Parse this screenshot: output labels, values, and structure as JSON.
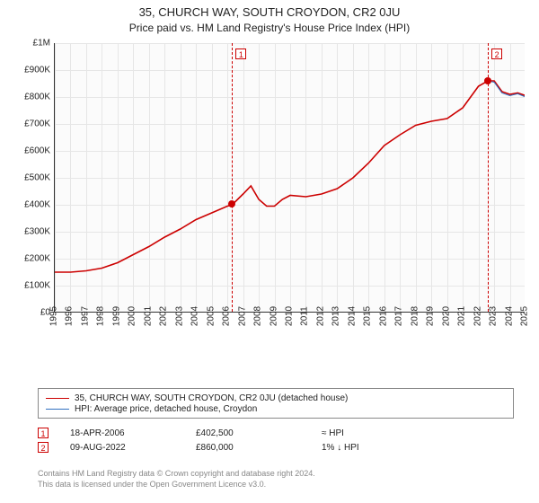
{
  "title": {
    "main": "35, CHURCH WAY, SOUTH CROYDON, CR2 0JU",
    "sub": "Price paid vs. HM Land Registry's House Price Index (HPI)"
  },
  "chart": {
    "type": "line",
    "background_color": "#fbfbfb",
    "grid_color": "#e6e6e6",
    "axis_color": "#333333",
    "label_fontsize": 10,
    "ylim": [
      0,
      1000000
    ],
    "ytick_step": 100000,
    "yticks_labels": [
      "£0",
      "£100K",
      "£200K",
      "£300K",
      "£400K",
      "£500K",
      "£600K",
      "£700K",
      "£800K",
      "£900K",
      "£1M"
    ],
    "xlim_years": [
      1995,
      2025
    ],
    "xticks_years": [
      1995,
      1996,
      1997,
      1998,
      1999,
      2000,
      2001,
      2002,
      2003,
      2004,
      2005,
      2006,
      2007,
      2008,
      2009,
      2010,
      2011,
      2012,
      2013,
      2014,
      2015,
      2016,
      2017,
      2018,
      2019,
      2020,
      2021,
      2022,
      2023,
      2024,
      2025
    ],
    "series": {
      "address": {
        "label": "35, CHURCH WAY, SOUTH CROYDON, CR2 0JU (detached house)",
        "color": "#cc0000",
        "width": 1.6,
        "years": [
          1995,
          1996,
          1997,
          1998,
          1999,
          2000,
          2001,
          2002,
          2003,
          2004,
          2005,
          2006,
          2006.3,
          2007,
          2007.5,
          2008,
          2008.5,
          2009,
          2009.5,
          2010,
          2011,
          2012,
          2013,
          2014,
          2015,
          2016,
          2017,
          2018,
          2019,
          2020,
          2021,
          2022,
          2022.6,
          2023,
          2023.5,
          2024,
          2024.5,
          2025
        ],
        "values": [
          150000,
          150000,
          155000,
          165000,
          185000,
          215000,
          245000,
          280000,
          310000,
          345000,
          370000,
          395000,
          400000,
          440000,
          470000,
          420000,
          395000,
          395000,
          420000,
          435000,
          430000,
          440000,
          460000,
          500000,
          555000,
          620000,
          660000,
          695000,
          710000,
          720000,
          760000,
          840000,
          860000,
          860000,
          820000,
          810000,
          815000,
          805000
        ]
      },
      "hpi": {
        "label": "HPI: Average price, detached house, Croydon",
        "color": "#3070c0",
        "width": 1.0,
        "years": [
          2022.6,
          2023,
          2023.5,
          2024,
          2024.5,
          2025
        ],
        "values": [
          860000,
          855000,
          815000,
          805000,
          812000,
          800000
        ]
      }
    },
    "event_lines": {
      "color": "#cc0000",
      "dash": "4,3",
      "years": [
        2006.3,
        2022.6
      ]
    },
    "sale_markers": [
      {
        "year": 2006.3,
        "value": 402500,
        "label": "1",
        "color": "#cc0000"
      },
      {
        "year": 2022.6,
        "value": 860000,
        "label": "2",
        "color": "#cc0000"
      }
    ]
  },
  "legend": {
    "border_color": "#888888"
  },
  "events_table": {
    "rows": [
      {
        "marker": "1",
        "date": "18-APR-2006",
        "price": "£402,500",
        "vs_hpi": "≈ HPI"
      },
      {
        "marker": "2",
        "date": "09-AUG-2022",
        "price": "£860,000",
        "vs_hpi": "1% ↓ HPI"
      }
    ]
  },
  "credits": {
    "line1": "Contains HM Land Registry data © Crown copyright and database right 2024.",
    "line2": "This data is licensed under the Open Government Licence v3.0."
  }
}
